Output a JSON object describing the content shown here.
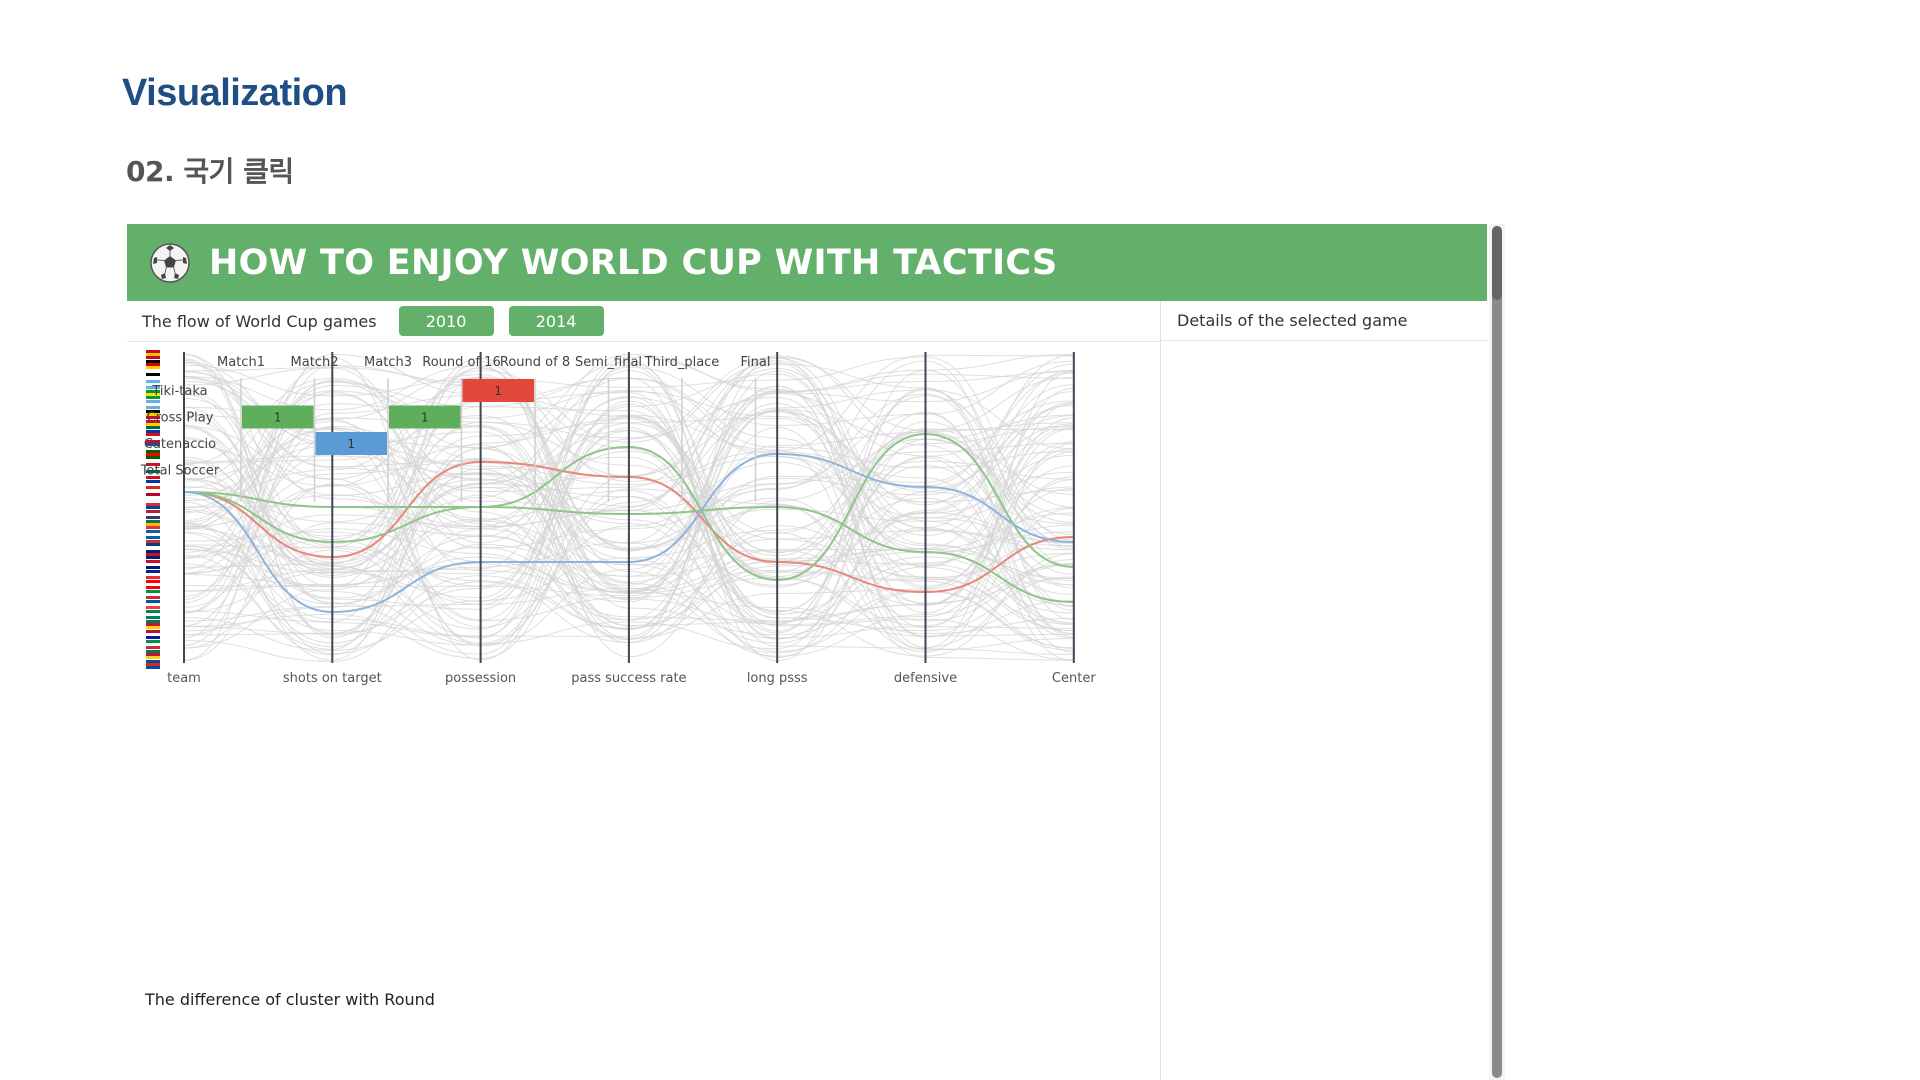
{
  "slide": {
    "title": "Visualization",
    "subtitle": "02. 국기 클릭"
  },
  "app": {
    "title": "HOW TO ENJOY WORLD CUP WITH TACTICS",
    "icon": "soccer-ball-icon",
    "header_color": "#63b06a"
  },
  "toolbar": {
    "label": "The flow of World Cup games",
    "buttons": [
      "2010",
      "2014"
    ]
  },
  "details": {
    "title": "Details of the selected game"
  },
  "parallel_coords": {
    "axes": [
      "team",
      "shots on target",
      "possession",
      "pass success rate",
      "long psss",
      "defensive",
      "Center"
    ],
    "flag_count": 32,
    "highlight_colors": {
      "red": "#e8877a",
      "green": "#8fc48a",
      "blue": "#8fb4db"
    }
  },
  "chart_data": {
    "type": "heatmap",
    "title": "The difference of cluster with Round",
    "columns": [
      "Match1",
      "Match2",
      "Match3",
      "Round of 16",
      "Round of 8",
      "Semi_final",
      "Third_place",
      "Final"
    ],
    "rows": [
      "Tiki-taka",
      "Cross Play",
      "Catenaccio",
      "Total Soccer"
    ],
    "cells": [
      {
        "row": "Tiki-taka",
        "column": "Round of 16",
        "value": 1,
        "color": "#e2493c"
      },
      {
        "row": "Cross Play",
        "column": "Match1",
        "value": 1,
        "color": "#5fae5c"
      },
      {
        "row": "Cross Play",
        "column": "Match3",
        "value": 1,
        "color": "#5fae5c"
      },
      {
        "row": "Catenaccio",
        "column": "Match2",
        "value": 1,
        "color": "#5b9bd5"
      }
    ]
  }
}
